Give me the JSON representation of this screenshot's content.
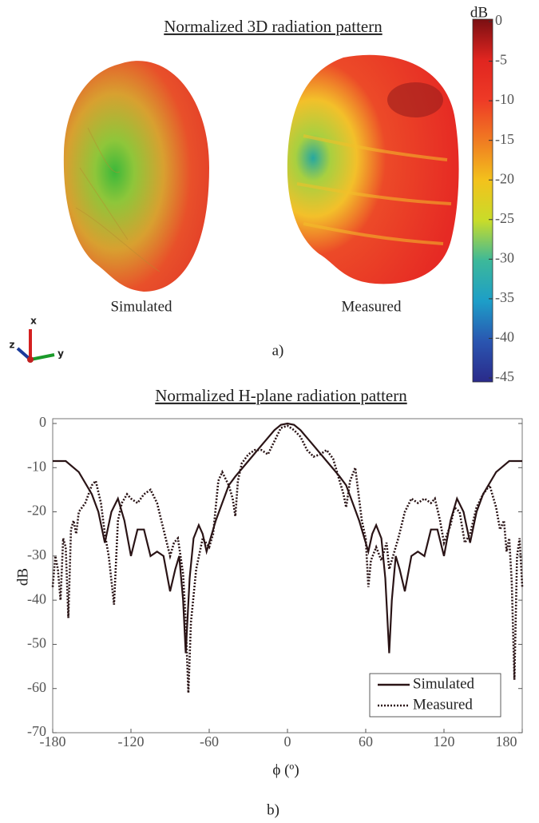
{
  "chart_data": [
    {
      "type": "colorbar",
      "title": "Normalized 3D radiation pattern",
      "label": "dB",
      "ylim": [
        -45,
        0
      ],
      "yticks": [
        0,
        -5,
        -10,
        -15,
        -20,
        -25,
        -30,
        -35,
        -40,
        -45
      ],
      "colormap": [
        "#7a0f12",
        "#e02520",
        "#ee3a26",
        "#f07a22",
        "#f3c21c",
        "#c8dc2a",
        "#3cb89a",
        "#1d9ec8",
        "#2a55b0",
        "#2a2a8a"
      ],
      "panels": [
        "Simulated",
        "Measured"
      ],
      "axes": [
        {
          "name": "x",
          "color": "#d42020"
        },
        {
          "name": "y",
          "color": "#1a9a2a"
        },
        {
          "name": "z",
          "color": "#1a3a9a"
        }
      ],
      "caption": "a)"
    },
    {
      "type": "line",
      "title": "Normalized H-plane radiation pattern",
      "xlabel": "ϕ (º)",
      "ylabel": "dB",
      "caption": "b)",
      "xlim": [
        -180,
        180
      ],
      "ylim": [
        -70,
        0
      ],
      "xticks": [
        -180,
        -120,
        -60,
        0,
        60,
        120,
        180
      ],
      "yticks": [
        0,
        -10,
        -20,
        -30,
        -40,
        -50,
        -60,
        -70
      ],
      "legend": "lower right",
      "series": [
        {
          "name": "Simulated",
          "color": "#2a1416",
          "style": "solid",
          "x": [
            -180,
            -170,
            -160,
            -150,
            -145,
            -140,
            -135,
            -130,
            -125,
            -120,
            -115,
            -110,
            -105,
            -100,
            -95,
            -90,
            -86,
            -83,
            -80,
            -78,
            -75,
            -72,
            -68,
            -65,
            -62,
            -60,
            -55,
            -50,
            -45,
            -40,
            -30,
            -20,
            -10,
            -5,
            0,
            5,
            10,
            20,
            30,
            40,
            45,
            50,
            55,
            60,
            62,
            65,
            68,
            72,
            75,
            78,
            80,
            83,
            86,
            90,
            95,
            100,
            105,
            110,
            115,
            120,
            125,
            130,
            135,
            140,
            145,
            150,
            160,
            170,
            180
          ],
          "values": [
            -8.5,
            -8.5,
            -11,
            -16,
            -20,
            -27,
            -20,
            -17,
            -22,
            -30,
            -24,
            -24,
            -30,
            -29,
            -30,
            -38,
            -33,
            -30,
            -40,
            -52,
            -35,
            -26,
            -23,
            -25,
            -29,
            -27,
            -22,
            -18,
            -14,
            -12,
            -8.5,
            -5,
            -1.5,
            -0.3,
            0,
            -0.3,
            -1.5,
            -5,
            -8.5,
            -12,
            -14,
            -18,
            -22,
            -27,
            -29,
            -25,
            -23,
            -26,
            -35,
            -52,
            -40,
            -30,
            -33,
            -38,
            -30,
            -29,
            -30,
            -24,
            -24,
            -30,
            -22,
            -17,
            -20,
            -27,
            -20,
            -16,
            -11,
            -8.5,
            -8.5
          ]
        },
        {
          "name": "Measured",
          "color": "#2a1416",
          "style": "dotted",
          "x": [
            -180,
            -178,
            -176,
            -174,
            -172,
            -170,
            -168,
            -166,
            -164,
            -162,
            -160,
            -155,
            -150,
            -147,
            -143,
            -140,
            -137,
            -133,
            -130,
            -127,
            -123,
            -120,
            -115,
            -110,
            -105,
            -100,
            -95,
            -90,
            -87,
            -84,
            -80,
            -78,
            -76,
            -74,
            -70,
            -65,
            -60,
            -57,
            -53,
            -50,
            -45,
            -42,
            -40,
            -38,
            -35,
            -30,
            -25,
            -20,
            -15,
            -10,
            -5,
            0,
            5,
            10,
            15,
            20,
            25,
            30,
            35,
            40,
            43,
            45,
            48,
            52,
            57,
            60,
            62,
            64,
            68,
            72,
            76,
            78,
            82,
            85,
            90,
            95,
            100,
            105,
            110,
            113,
            117,
            120,
            125,
            128,
            132,
            136,
            140,
            145,
            150,
            155,
            160,
            163,
            166,
            168,
            170,
            172,
            174,
            176,
            178,
            180
          ],
          "values": [
            -37,
            -30,
            -33,
            -40,
            -26,
            -28,
            -44,
            -24,
            -22,
            -25,
            -20,
            -18,
            -14,
            -13,
            -18,
            -25,
            -30,
            -41,
            -22,
            -18,
            -16,
            -17,
            -18,
            -16,
            -15,
            -18,
            -24,
            -30,
            -27,
            -26,
            -34,
            -45,
            -61,
            -45,
            -33,
            -26,
            -28,
            -25,
            -13,
            -11,
            -14,
            -17,
            -21,
            -13,
            -9,
            -7,
            -6,
            -6,
            -7,
            -4,
            -1,
            -0.5,
            -1.5,
            -3,
            -6,
            -7.5,
            -7,
            -6,
            -8,
            -13,
            -16,
            -19,
            -13,
            -10,
            -22,
            -26,
            -37,
            -31,
            -28,
            -31,
            -27,
            -33,
            -29,
            -26,
            -20,
            -17,
            -18,
            -17,
            -18,
            -17,
            -22,
            -27,
            -23,
            -19,
            -20,
            -27,
            -25,
            -19,
            -16,
            -14,
            -19,
            -24,
            -22,
            -29,
            -26,
            -36,
            -58,
            -30,
            -26,
            -37
          ]
        }
      ]
    }
  ]
}
